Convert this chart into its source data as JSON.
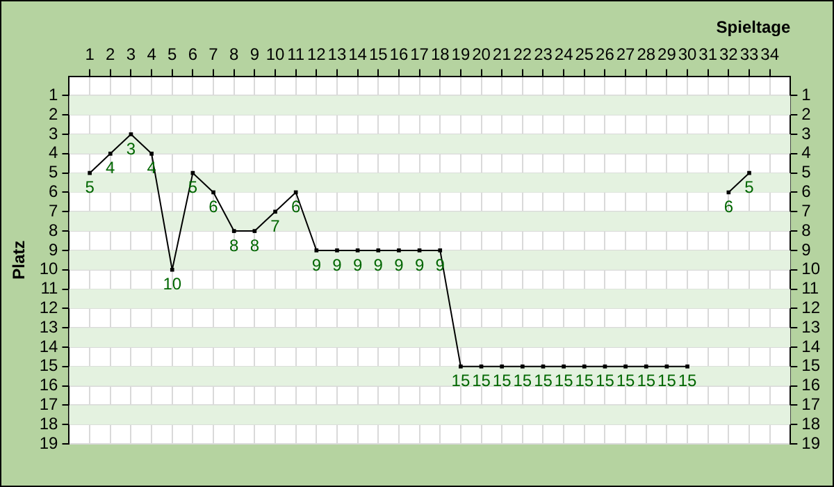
{
  "chart_data": {
    "type": "line",
    "xlabel": "Spieltage",
    "ylabel": "Platz",
    "x": [
      1,
      2,
      3,
      4,
      5,
      6,
      7,
      8,
      9,
      10,
      11,
      12,
      13,
      14,
      15,
      16,
      17,
      18,
      19,
      20,
      21,
      22,
      23,
      24,
      25,
      26,
      27,
      28,
      29,
      30,
      31,
      32,
      33
    ],
    "series": [
      {
        "color": "#000000",
        "values": [
          5,
          4,
          3,
          4,
          10,
          5,
          6,
          8,
          8,
          7,
          6,
          9,
          9,
          9,
          9,
          9,
          9,
          9,
          15,
          15,
          15,
          15,
          15,
          15,
          15,
          15,
          15,
          15,
          15,
          15,
          null,
          6,
          5
        ]
      }
    ],
    "xlim": [
      0,
      35
    ],
    "xticks": [
      1,
      2,
      3,
      4,
      5,
      6,
      7,
      8,
      9,
      10,
      11,
      12,
      13,
      14,
      15,
      16,
      17,
      18,
      19,
      20,
      21,
      22,
      23,
      24,
      25,
      26,
      27,
      28,
      29,
      30,
      31,
      32,
      33,
      34
    ],
    "ylim": [
      19,
      0
    ],
    "yticks": [
      1,
      2,
      3,
      4,
      5,
      6,
      7,
      8,
      9,
      10,
      11,
      12,
      13,
      14,
      15,
      16,
      17,
      18,
      19
    ],
    "y2lim": [
      19,
      0
    ],
    "y2ticks": [
      1,
      2,
      3,
      4,
      5,
      6,
      7,
      8,
      9,
      10,
      11,
      12,
      13,
      14,
      15,
      16,
      17,
      18,
      19
    ],
    "grid": true,
    "legend": false,
    "marker": "square",
    "line_style": "solid",
    "data_labels": true
  }
}
